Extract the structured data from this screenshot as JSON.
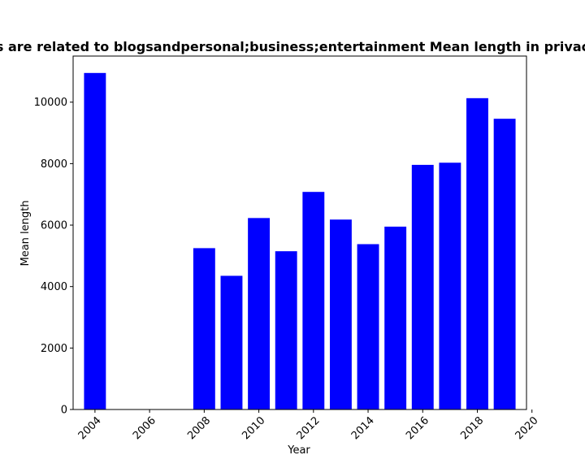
{
  "chart_data": {
    "type": "bar",
    "title": "s are related to blogsandpersonal;business;entertainment Mean length in privac",
    "xlabel": "Year",
    "ylabel": "Mean length",
    "x": [
      2004,
      2008,
      2009,
      2010,
      2011,
      2012,
      2013,
      2014,
      2015,
      2016,
      2017,
      2018,
      2019
    ],
    "values": [
      10950,
      5250,
      4350,
      6230,
      5150,
      7080,
      6180,
      5380,
      5950,
      7960,
      8030,
      10130,
      9460
    ],
    "xlim": [
      2003.2,
      2019.8
    ],
    "ylim": [
      0,
      11500
    ],
    "xticks": [
      2004,
      2006,
      2008,
      2010,
      2012,
      2014,
      2016,
      2018,
      2020
    ],
    "yticks": [
      0,
      2000,
      4000,
      6000,
      8000,
      10000
    ],
    "bar_color": "#0000ff",
    "grid": false
  }
}
